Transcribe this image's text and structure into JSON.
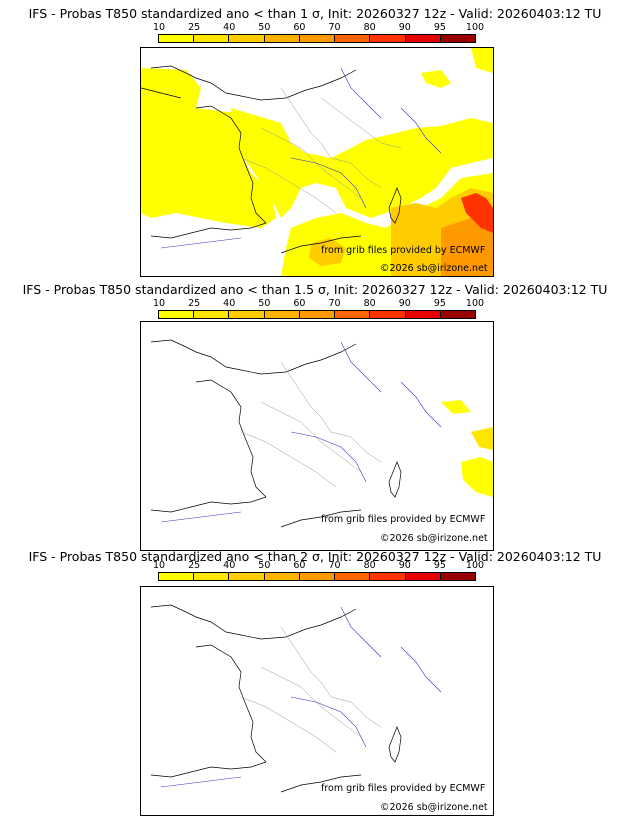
{
  "colorbar": {
    "labels": [
      "10",
      "25",
      "40",
      "50",
      "60",
      "70",
      "80",
      "90",
      "95",
      "100"
    ],
    "colors": [
      "#ffff00",
      "#ffe600",
      "#ffcc00",
      "#ffb300",
      "#ff9900",
      "#ff6600",
      "#ff3300",
      "#e60000",
      "#990000"
    ]
  },
  "panels": [
    {
      "title": "IFS - Probas T850  standardized ano < than 1 σ, Init: 20260327 12z - Valid: 20260403:12 TU",
      "source": "from grib files provided by ECMWF",
      "copyright": "©2026 sb@irizone.net",
      "coverage": "extensive"
    },
    {
      "title": "IFS - Probas T850  standardized ano < than 1.5 σ, Init: 20260327 12z - Valid: 20260403:12 TU",
      "source": "from grib files provided by ECMWF",
      "copyright": "©2026 sb@irizone.net",
      "coverage": "minimal"
    },
    {
      "title": "IFS - Probas T850  standardized ano < than 2 σ, Init: 20260327 12z - Valid: 20260403:12 TU",
      "source": "from grib files provided by ECMWF",
      "copyright": "©2026 sb@irizone.net",
      "coverage": "none"
    }
  ]
}
